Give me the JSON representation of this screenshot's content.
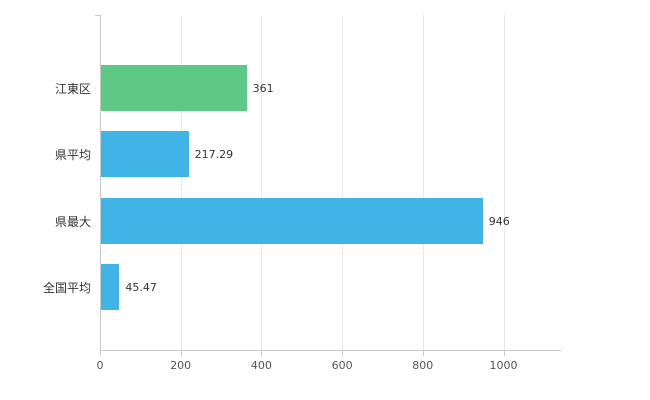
{
  "chart_data": {
    "type": "bar",
    "orientation": "horizontal",
    "title": "",
    "xlabel": "",
    "ylabel": "",
    "categories": [
      "江東区",
      "県平均",
      "県最大",
      "全国平均"
    ],
    "values": [
      361,
      217.29,
      946,
      45.47
    ],
    "value_labels": [
      "361",
      "217.29",
      "946",
      "45.47"
    ],
    "bar_colors": [
      "#5ec987",
      "#41b4e6",
      "#41b4e6",
      "#41b4e6"
    ],
    "x_ticks": [
      0,
      200,
      400,
      600,
      800,
      1000
    ],
    "xlim": [
      0,
      1140
    ],
    "grid": true,
    "legend": "none",
    "axis_color": "#c9c9c9",
    "grid_color": "#e9e9e9",
    "label_color": "#333333",
    "tick_label_color": "#555555",
    "background_color": "#ffffff"
  }
}
